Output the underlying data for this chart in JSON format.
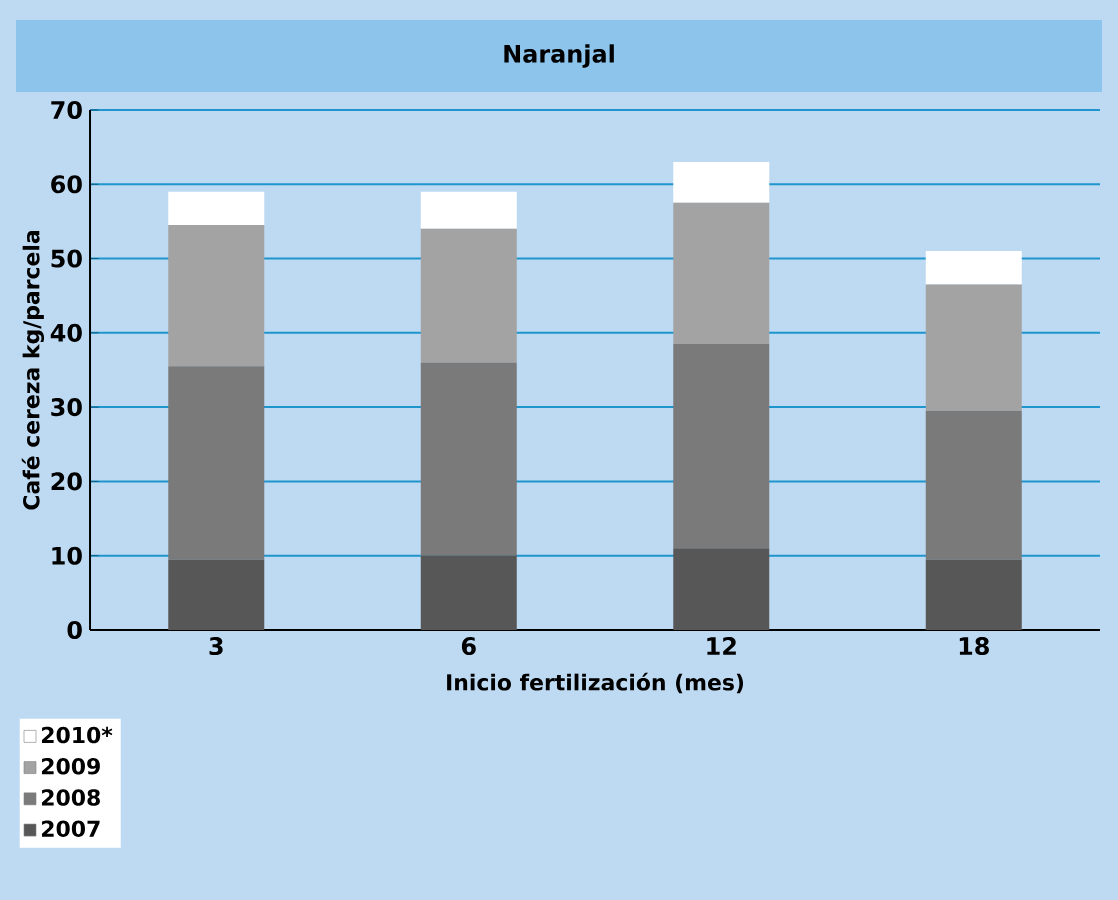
{
  "chart_data": {
    "type": "bar",
    "stacked": true,
    "title": "Naranjal",
    "xlabel": "Inicio fertilización (mes)",
    "ylabel": "Café cereza kg/parcela",
    "categories": [
      "3",
      "6",
      "12",
      "18"
    ],
    "series": [
      {
        "name": "2007",
        "color": "#575757",
        "values": [
          9.5,
          10,
          11,
          9.5
        ]
      },
      {
        "name": "2008",
        "color": "#7a7a7a",
        "values": [
          26,
          26,
          27.5,
          20
        ]
      },
      {
        "name": "2009",
        "color": "#a3a3a3",
        "values": [
          19,
          18,
          19,
          17
        ]
      },
      {
        "name": "2010*",
        "color": "#ffffff",
        "values": [
          4.5,
          5,
          5.5,
          4.5
        ]
      }
    ],
    "ylim": [
      0,
      70
    ],
    "yticks": [
      0,
      10,
      20,
      30,
      40,
      50,
      60,
      70
    ],
    "grid": "y",
    "legend": "bottom left"
  }
}
